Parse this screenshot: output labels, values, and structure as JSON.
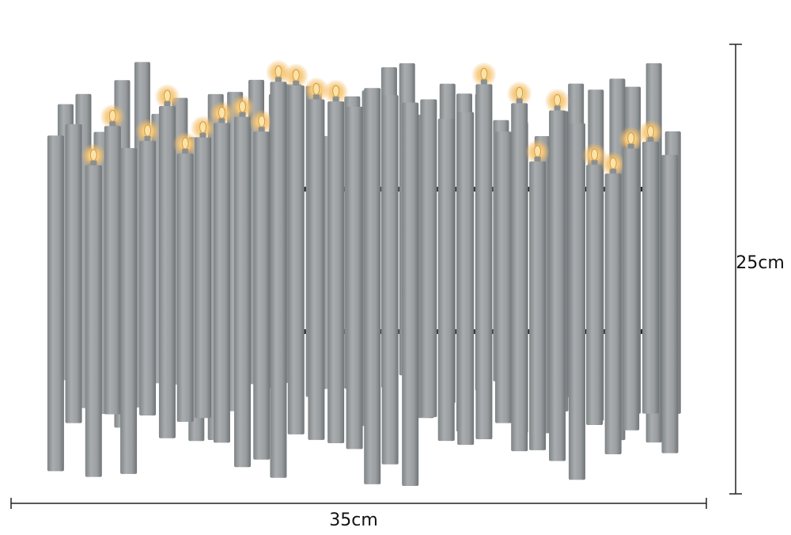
{
  "dimensions": {
    "height": "25cm",
    "width": "35cm"
  }
}
